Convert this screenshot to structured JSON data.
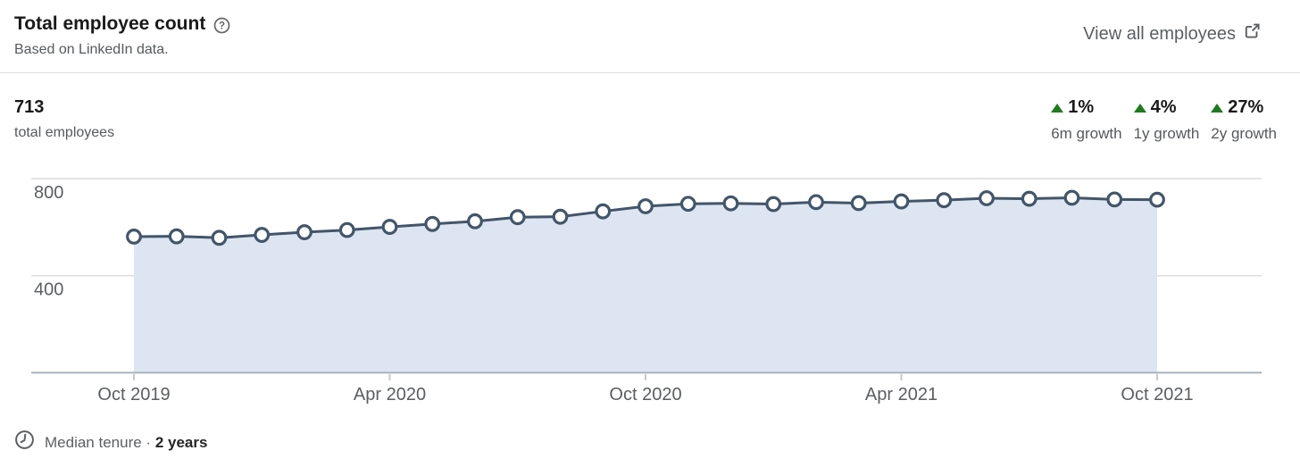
{
  "header": {
    "title": "Total employee count",
    "subtitle": "Based on LinkedIn data.",
    "view_all_label": "View all employees"
  },
  "summary": {
    "value": "713",
    "label": "total employees"
  },
  "growth_stats": [
    {
      "value": "1%",
      "label": "6m growth",
      "direction": "up"
    },
    {
      "value": "4%",
      "label": "1y growth",
      "direction": "up"
    },
    {
      "value": "27%",
      "label": "2y growth",
      "direction": "up"
    }
  ],
  "footer": {
    "label": "Median tenure",
    "separator": "·",
    "value": "2 years"
  },
  "colors": {
    "line": "#42556a",
    "area": "#dce5f1",
    "grid": "#dcdcdc",
    "axis_line": "#a8b2bf",
    "tick": "#c9c9c9",
    "axis_text": "#5b5e61",
    "growth_green": "#1e7b1e"
  },
  "chart_data": {
    "type": "area",
    "title": "Total employee count",
    "xlabel": "",
    "ylabel": "total employees",
    "ylim": [
      0,
      880
    ],
    "y_gridlines": [
      800,
      400
    ],
    "grid": true,
    "legend": "none",
    "categories": [
      "Oct 2019",
      "Nov 2019",
      "Dec 2019",
      "Jan 2020",
      "Feb 2020",
      "Mar 2020",
      "Apr 2020",
      "May 2020",
      "Jun 2020",
      "Jul 2020",
      "Aug 2020",
      "Sep 2020",
      "Oct 2020",
      "Nov 2020",
      "Dec 2020",
      "Jan 2021",
      "Feb 2021",
      "Mar 2021",
      "Apr 2021",
      "May 2021",
      "Jun 2021",
      "Jul 2021",
      "Aug 2021",
      "Sep 2021",
      "Oct 2021"
    ],
    "values": [
      561,
      562,
      556,
      568,
      579,
      588,
      601,
      613,
      624,
      641,
      643,
      665,
      686,
      696,
      698,
      695,
      703,
      699,
      706,
      711,
      719,
      717,
      721,
      714,
      713
    ],
    "x_tick_indices": [
      0,
      6,
      12,
      18,
      24
    ],
    "x_tick_labels": [
      "Oct 2019",
      "Apr 2020",
      "Oct 2020",
      "Apr 2021",
      "Oct 2021"
    ]
  }
}
